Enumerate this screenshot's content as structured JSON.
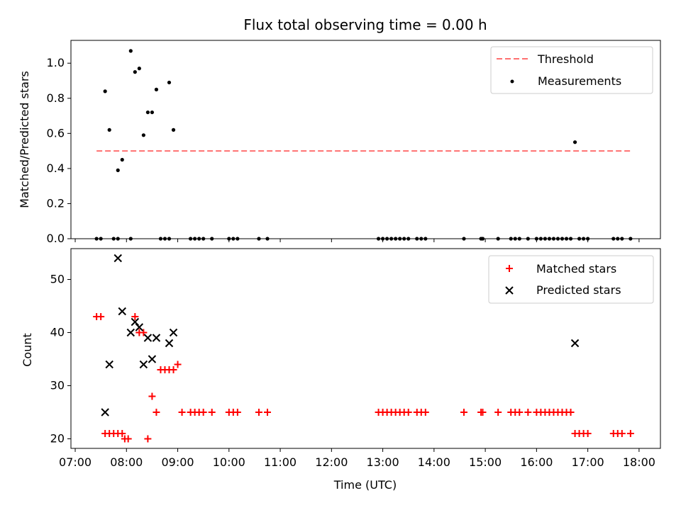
{
  "figure": {
    "title": "Flux total observing time = 0.00 h"
  },
  "chart_data": [
    {
      "type": "scatter",
      "ylabel": "Matched/Predicted stars",
      "xlabel": "",
      "xlim": [
        "06:55",
        "18:25"
      ],
      "ylim": [
        0,
        1.13
      ],
      "yticks": [
        "0.0",
        "0.2",
        "0.4",
        "0.6",
        "0.8",
        "1.0"
      ],
      "threshold": {
        "name": "Threshold",
        "value": 0.5,
        "x": [
          "07:25",
          "17:50"
        ],
        "color": "#ff7070",
        "style": "dashed"
      },
      "series": [
        {
          "name": "Measurements",
          "color": "#000000",
          "points": [
            [
              "07:35",
              0.84
            ],
            [
              "07:40",
              0.62
            ],
            [
              "07:50",
              0.39
            ],
            [
              "07:55",
              0.45
            ],
            [
              "08:05",
              1.07
            ],
            [
              "08:10",
              0.95
            ],
            [
              "08:15",
              0.97
            ],
            [
              "08:20",
              0.59
            ],
            [
              "08:25",
              0.72
            ],
            [
              "08:30",
              0.72
            ],
            [
              "08:35",
              0.85
            ],
            [
              "08:50",
              0.89
            ],
            [
              "08:55",
              0.62
            ],
            [
              "16:45",
              0.55
            ],
            [
              "07:25",
              0
            ],
            [
              "07:30",
              0
            ],
            [
              "07:45",
              0
            ],
            [
              "07:50",
              0
            ],
            [
              "08:05",
              0
            ],
            [
              "08:40",
              0
            ],
            [
              "08:45",
              0
            ],
            [
              "08:50",
              0
            ],
            [
              "09:15",
              0
            ],
            [
              "09:20",
              0
            ],
            [
              "09:25",
              0
            ],
            [
              "09:30",
              0
            ],
            [
              "09:40",
              0
            ],
            [
              "10:00",
              0
            ],
            [
              "10:05",
              0
            ],
            [
              "10:10",
              0
            ],
            [
              "10:35",
              0
            ],
            [
              "10:45",
              0
            ],
            [
              "12:55",
              0
            ],
            [
              "13:00",
              0
            ],
            [
              "13:05",
              0
            ],
            [
              "13:10",
              0
            ],
            [
              "13:15",
              0
            ],
            [
              "13:20",
              0
            ],
            [
              "13:25",
              0
            ],
            [
              "13:30",
              0
            ],
            [
              "13:40",
              0
            ],
            [
              "13:45",
              0
            ],
            [
              "13:50",
              0
            ],
            [
              "14:35",
              0
            ],
            [
              "14:55",
              0
            ],
            [
              "14:57",
              0
            ],
            [
              "15:15",
              0
            ],
            [
              "15:30",
              0
            ],
            [
              "15:35",
              0
            ],
            [
              "15:40",
              0
            ],
            [
              "15:50",
              0
            ],
            [
              "16:00",
              0
            ],
            [
              "16:05",
              0
            ],
            [
              "16:10",
              0
            ],
            [
              "16:15",
              0
            ],
            [
              "16:20",
              0
            ],
            [
              "16:25",
              0
            ],
            [
              "16:30",
              0
            ],
            [
              "16:35",
              0
            ],
            [
              "16:40",
              0
            ],
            [
              "16:50",
              0
            ],
            [
              "16:55",
              0
            ],
            [
              "17:00",
              0
            ],
            [
              "17:30",
              0
            ],
            [
              "17:35",
              0
            ],
            [
              "17:40",
              0
            ],
            [
              "17:50",
              0
            ]
          ]
        }
      ],
      "legend": {
        "placement": "top-right"
      }
    },
    {
      "type": "scatter",
      "ylabel": "Count",
      "xlabel": "Time (UTC)",
      "xlim": [
        "06:55",
        "18:25"
      ],
      "ylim": [
        18.2,
        55.8
      ],
      "yticks": [
        "20",
        "30",
        "40",
        "50"
      ],
      "xticks": [
        "07:00",
        "08:00",
        "09:00",
        "10:00",
        "11:00",
        "12:00",
        "13:00",
        "14:00",
        "15:00",
        "16:00",
        "17:00",
        "18:00"
      ],
      "series": [
        {
          "name": "Matched stars",
          "marker": "plus",
          "color": "#ff0000",
          "points": [
            [
              "07:25",
              43
            ],
            [
              "07:30",
              43
            ],
            [
              "07:35",
              21
            ],
            [
              "07:40",
              21
            ],
            [
              "07:45",
              21
            ],
            [
              "07:50",
              21
            ],
            [
              "07:55",
              21
            ],
            [
              "07:58",
              20
            ],
            [
              "08:02",
              20
            ],
            [
              "08:10",
              43
            ],
            [
              "08:15",
              40
            ],
            [
              "08:20",
              40
            ],
            [
              "08:25",
              20
            ],
            [
              "08:30",
              28
            ],
            [
              "08:35",
              25
            ],
            [
              "08:40",
              33
            ],
            [
              "08:45",
              33
            ],
            [
              "08:50",
              33
            ],
            [
              "08:55",
              33
            ],
            [
              "09:00",
              34
            ],
            [
              "09:05",
              25
            ],
            [
              "09:15",
              25
            ],
            [
              "09:20",
              25
            ],
            [
              "09:25",
              25
            ],
            [
              "09:30",
              25
            ],
            [
              "09:40",
              25
            ],
            [
              "10:00",
              25
            ],
            [
              "10:05",
              25
            ],
            [
              "10:10",
              25
            ],
            [
              "10:35",
              25
            ],
            [
              "10:45",
              25
            ],
            [
              "12:55",
              25
            ],
            [
              "13:00",
              25
            ],
            [
              "13:05",
              25
            ],
            [
              "13:10",
              25
            ],
            [
              "13:15",
              25
            ],
            [
              "13:20",
              25
            ],
            [
              "13:25",
              25
            ],
            [
              "13:30",
              25
            ],
            [
              "13:40",
              25
            ],
            [
              "13:45",
              25
            ],
            [
              "13:50",
              25
            ],
            [
              "14:35",
              25
            ],
            [
              "14:55",
              25
            ],
            [
              "14:57",
              25
            ],
            [
              "15:15",
              25
            ],
            [
              "15:30",
              25
            ],
            [
              "15:35",
              25
            ],
            [
              "15:40",
              25
            ],
            [
              "15:50",
              25
            ],
            [
              "16:00",
              25
            ],
            [
              "16:05",
              25
            ],
            [
              "16:10",
              25
            ],
            [
              "16:15",
              25
            ],
            [
              "16:20",
              25
            ],
            [
              "16:25",
              25
            ],
            [
              "16:30",
              25
            ],
            [
              "16:35",
              25
            ],
            [
              "16:40",
              25
            ],
            [
              "16:45",
              21
            ],
            [
              "16:50",
              21
            ],
            [
              "16:55",
              21
            ],
            [
              "17:00",
              21
            ],
            [
              "17:30",
              21
            ],
            [
              "17:35",
              21
            ],
            [
              "17:40",
              21
            ],
            [
              "17:50",
              21
            ]
          ]
        },
        {
          "name": "Predicted stars",
          "marker": "x",
          "color": "#000000",
          "points": [
            [
              "07:35",
              25
            ],
            [
              "07:40",
              34
            ],
            [
              "07:50",
              54
            ],
            [
              "07:55",
              44
            ],
            [
              "08:05",
              40
            ],
            [
              "08:10",
              42
            ],
            [
              "08:15",
              41
            ],
            [
              "08:20",
              34
            ],
            [
              "08:25",
              39
            ],
            [
              "08:30",
              35
            ],
            [
              "08:35",
              39
            ],
            [
              "08:50",
              38
            ],
            [
              "08:55",
              40
            ],
            [
              "16:45",
              38
            ]
          ]
        }
      ],
      "legend": {
        "placement": "top-right"
      }
    }
  ]
}
